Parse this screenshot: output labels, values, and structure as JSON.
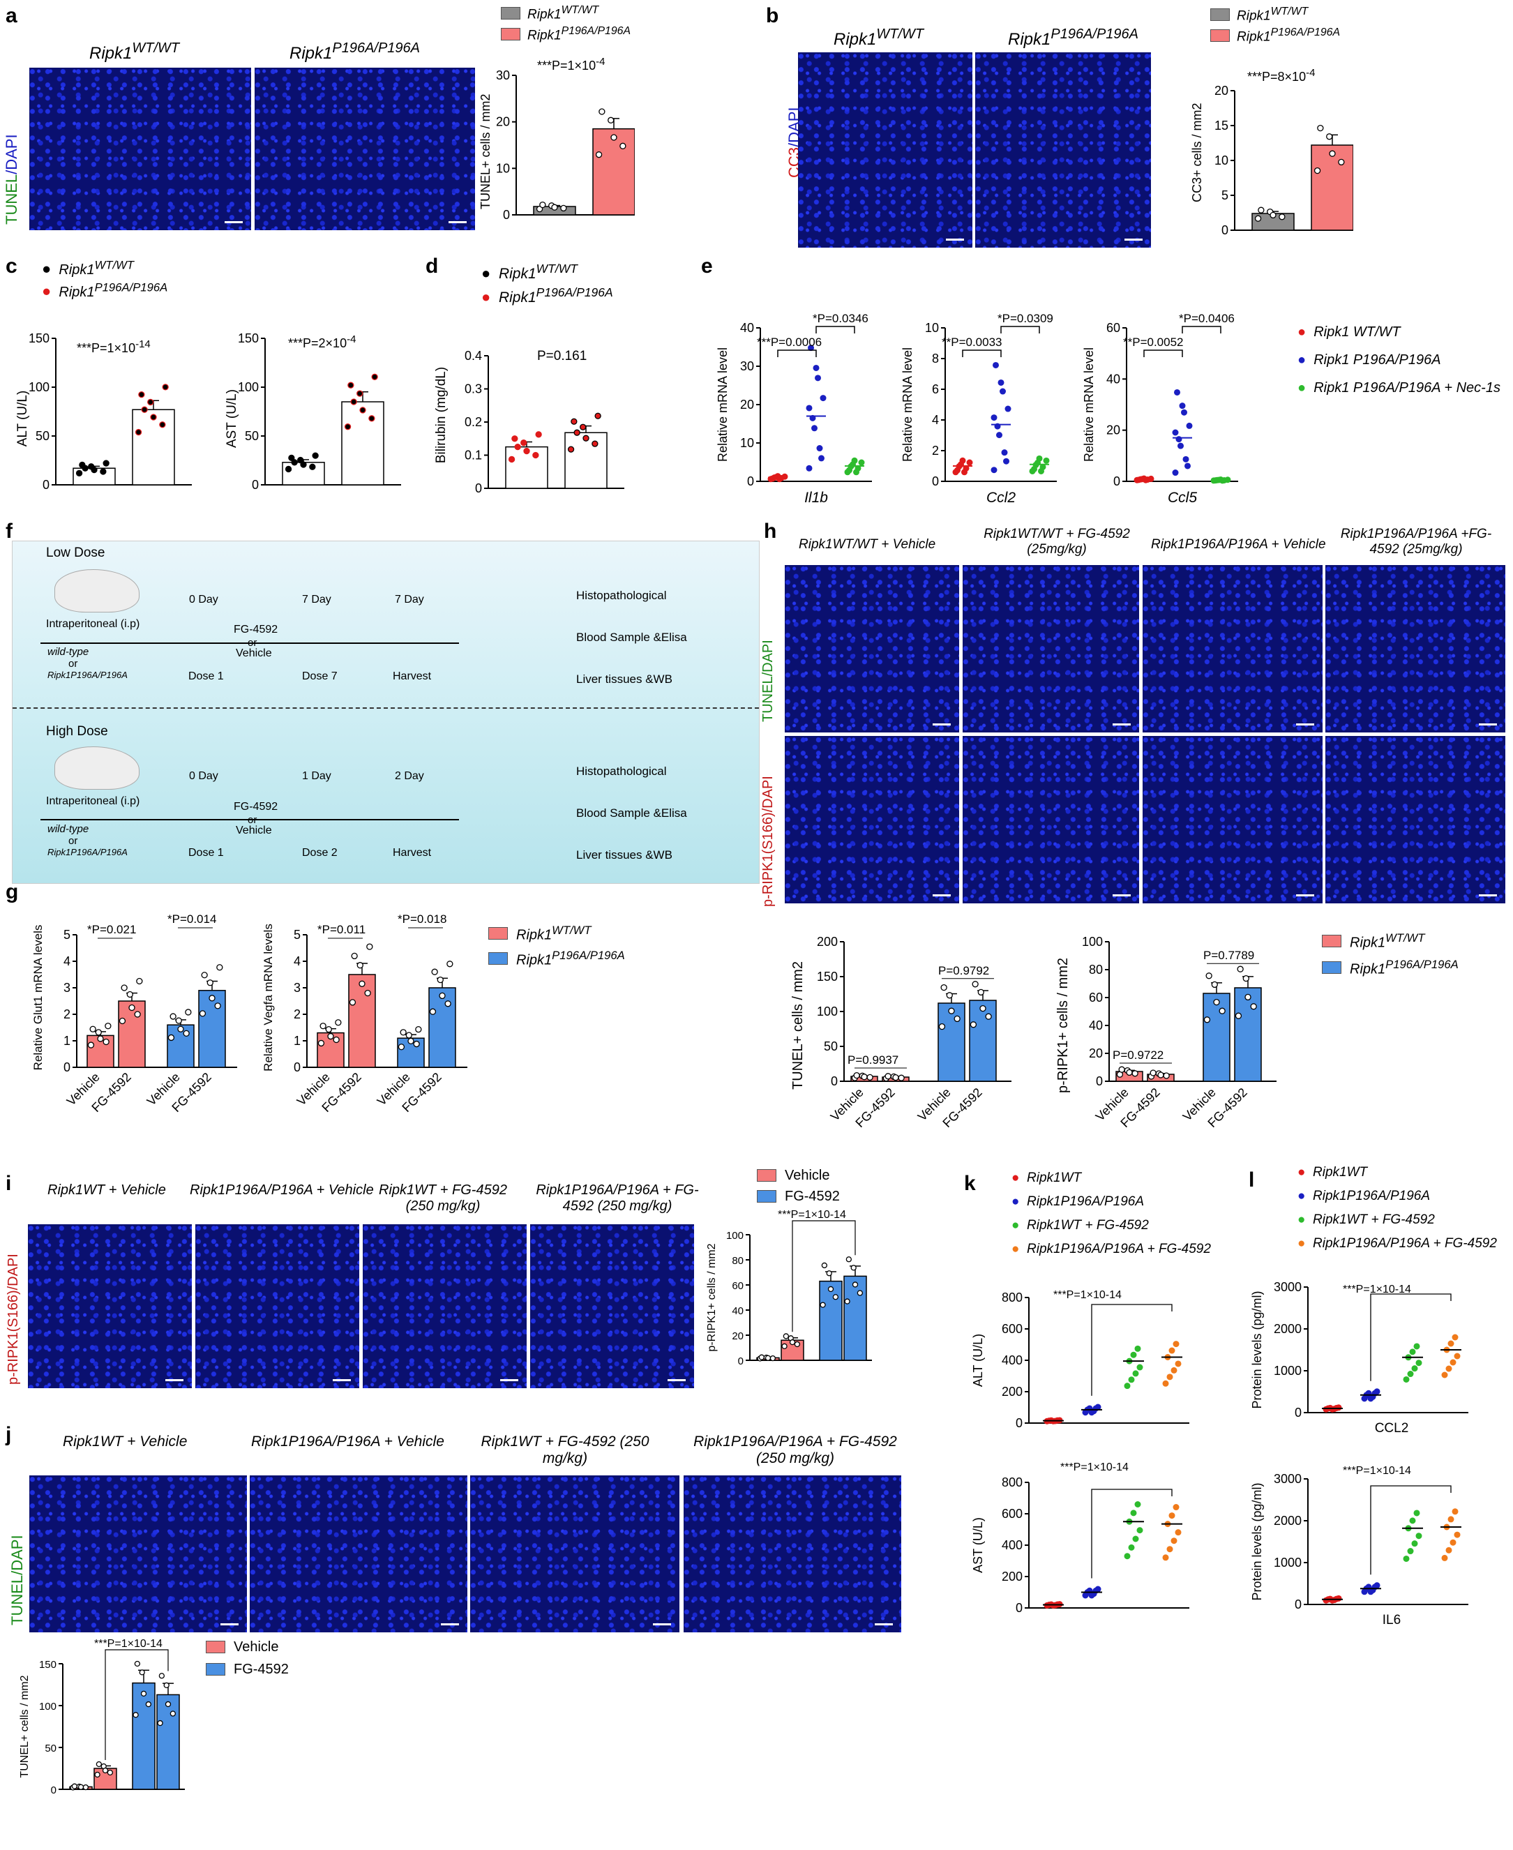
{
  "panels": {
    "a": {
      "label": "a",
      "col1": "Ripk1",
      "col1_sup": "WT/WT",
      "col2": "Ripk1",
      "col2_sup": "P196A/P196A",
      "stain_green": "TUNEL",
      "stain_blue": "/DAPI",
      "legend": [
        {
          "name": "Ripk1",
          "sup": "WT/WT",
          "color": "#8c8c8c"
        },
        {
          "name": "Ripk1",
          "sup": "P196A/P196A",
          "color": "#f47a7a"
        }
      ],
      "pval": "***P=1×10",
      "pval_exp": "-4",
      "ylabel": "TUNEL+ cells / mm2"
    },
    "b": {
      "label": "b",
      "col1": "Ripk1",
      "col1_sup": "WT/WT",
      "col2": "Ripk1",
      "col2_sup": "P196A/P196A",
      "stain_red": "CC3",
      "stain_blue": "/DAPI",
      "pval": "***P=8×10",
      "pval_exp": "-4",
      "ylabel": "CC3+ cells / mm2"
    },
    "c": {
      "label": "c",
      "legend1": "Ripk1",
      "legend1_sup": "WT/WT",
      "legend2": "Ripk1",
      "legend2_sup": "P196A/P196A",
      "alt_p": "***P=1×10",
      "alt_p_exp": "-14",
      "ast_p": "***P=2×10",
      "ast_p_exp": "-4"
    },
    "d": {
      "label": "d",
      "pval": "P=0.161"
    },
    "e": {
      "label": "e",
      "genes": [
        "Il1b",
        "Ccl2",
        "Ccl5"
      ],
      "legend": [
        "Ripk1 WT/WT",
        "Ripk1 P196A/P196A",
        "Ripk1 P196A/P196A + Nec-1s"
      ],
      "p_il1b": [
        "***P=0.0006",
        "*P=0.0346"
      ],
      "p_ccl2": [
        "**P=0.0033",
        "*P=0.0309"
      ],
      "p_ccl5": [
        "**P=0.0052",
        "*P=0.0406"
      ],
      "ylabel": "Relative mRNA level"
    },
    "f": {
      "label": "f",
      "low": "Low Dose",
      "high": "High Dose",
      "route": "Intraperitoneal (i.p)",
      "strain1": "wild-type",
      "or": "or",
      "strain2": "Ripk1P196A/P196A",
      "drug": "FG-4592",
      "or2": "or",
      "veh": "Vehicle",
      "low_days": [
        "0 Day",
        "7 Day",
        "7 Day"
      ],
      "low_doses": [
        "Dose 1",
        "Dose 7",
        "Harvest"
      ],
      "high_days": [
        "0 Day",
        "1 Day",
        "2 Day"
      ],
      "high_doses": [
        "Dose 1",
        "Dose 2",
        "Harvest"
      ],
      "outputs": [
        "Histopathological",
        "Blood Sample &Elisa",
        "Liver tissues &WB"
      ],
      "outputs2": [
        "Histopathological",
        "Blood Sample &Elisa",
        "Liver  tissues &WB"
      ]
    },
    "g": {
      "label": "g",
      "p1": [
        "*P=0.021",
        "*P=0.014"
      ],
      "p2": [
        "*P=0.011",
        "*P=0.018"
      ],
      "ylab1": "Relative Glut1 mRNA levels",
      "ylab2": "Relative Vegfa mRNA levels",
      "xticks": [
        "Vehicle",
        "FG-4592",
        "Vehicle",
        "FG-4592"
      ]
    },
    "h": {
      "label": "h",
      "cols": [
        "Ripk1WT/WT + Vehicle",
        "Ripk1WT/WT + FG-4592 (25mg/kg)",
        "Ripk1P196A/P196A + Vehicle",
        "Ripk1P196A/P196A +FG-4592 (25mg/kg)"
      ],
      "row1": "TUNEL/DAPI",
      "row2": "p-RIPK1(S166)/DAPI",
      "p_tunel": [
        "P=0.9937",
        "P=0.9792"
      ],
      "p_prip": [
        "P=0.9722",
        "P=0.7789"
      ]
    },
    "i": {
      "label": "i",
      "cols": [
        "Ripk1WT + Vehicle",
        "Ripk1P196A/P196A + Vehicle",
        "Ripk1WT + FG-4592 (250 mg/kg)",
        "Ripk1P196A/P196A + FG-4592 (250 mg/kg)"
      ],
      "row": "p-RIPK1(S166)/DAPI",
      "pval": "***P=1×10-14",
      "legend": [
        "Vehicle",
        "FG-4592"
      ]
    },
    "j": {
      "label": "j",
      "cols": [
        "Ripk1WT + Vehicle",
        "Ripk1P196A/P196A + Vehicle",
        "Ripk1WT + FG-4592 (250 mg/kg)",
        "Ripk1P196A/P196A + FG-4592 (250 mg/kg)"
      ],
      "row": "TUNEL/DAPI",
      "pval": "***P=1×10-14",
      "legend": [
        "Vehicle",
        "FG-4592"
      ]
    },
    "k": {
      "label": "k",
      "legend": [
        "Ripk1WT",
        "Ripk1P196A/P196A",
        "Ripk1WT + FG-4592",
        "Ripk1P196A/P196A + FG-4592"
      ],
      "p_alt": "***P=1×10-14",
      "p_ast": "***P=1×10-14"
    },
    "l": {
      "label": "l",
      "legend": [
        "Ripk1WT",
        "Ripk1P196A/P196A",
        "Ripk1WT + FG-4592",
        "Ripk1P196A/P196A + FG-4592"
      ],
      "p_ccl2": "***P=1×10-14",
      "p_il6": "***P=1×10-14",
      "xlab1": "CCL2",
      "xlab2": "IL6"
    }
  },
  "chart_data": [
    {
      "id": "a-bar",
      "type": "bar",
      "categories": [
        "Ripk1 WT/WT",
        "Ripk1 P196A/P196A"
      ],
      "values": [
        1.8,
        18.5
      ],
      "ylim": [
        0,
        30
      ],
      "ylabel": "TUNEL+ cells / mm2",
      "colors": [
        "#8c8c8c",
        "#f47a7a"
      ]
    },
    {
      "id": "b-bar",
      "type": "bar",
      "categories": [
        "Ripk1 WT/WT",
        "Ripk1 P196A/P196A"
      ],
      "values": [
        2.4,
        12.2
      ],
      "ylim": [
        0,
        20
      ],
      "ylabel": "CC3+ cells / mm2",
      "colors": [
        "#8c8c8c",
        "#f47a7a"
      ]
    },
    {
      "id": "c-alt",
      "type": "bar",
      "values": [
        17,
        77
      ],
      "ylim": [
        0,
        150
      ],
      "ylabel": "ALT (U/L)"
    },
    {
      "id": "c-ast",
      "type": "bar",
      "values": [
        23,
        85
      ],
      "ylim": [
        0,
        150
      ],
      "ylabel": "AST (U/L)"
    },
    {
      "id": "d-bili",
      "type": "bar",
      "values": [
        0.125,
        0.168
      ],
      "ylim": [
        0,
        0.4
      ],
      "ylabel": "Bilirubin (mg/dL)"
    },
    {
      "id": "e-il1b",
      "type": "scatter",
      "values": [
        1,
        17,
        4
      ],
      "ylim": [
        0,
        40
      ],
      "xlabel": "Il1b"
    },
    {
      "id": "e-ccl2",
      "type": "scatter",
      "values": [
        1,
        3.7,
        1.1
      ],
      "ylim": [
        0,
        10
      ],
      "xlabel": "Ccl2"
    },
    {
      "id": "e-ccl5",
      "type": "scatter",
      "values": [
        0.8,
        17,
        0.5
      ],
      "ylim": [
        0,
        60
      ],
      "xlabel": "Ccl5"
    },
    {
      "id": "g-glut1",
      "type": "bar",
      "values": [
        1.2,
        2.5,
        1.6,
        2.9
      ],
      "ylim": [
        0,
        5
      ]
    },
    {
      "id": "g-vegfa",
      "type": "bar",
      "values": [
        1.3,
        3.5,
        1.1,
        3.0
      ],
      "ylim": [
        0,
        5
      ]
    },
    {
      "id": "h-tunel",
      "type": "bar",
      "values": [
        7,
        6,
        112,
        116
      ],
      "ylim": [
        0,
        200
      ]
    },
    {
      "id": "h-prip",
      "type": "bar",
      "values": [
        7,
        5,
        63,
        67
      ],
      "ylim": [
        0,
        100
      ]
    },
    {
      "id": "i-bar",
      "type": "bar",
      "values": [
        2,
        16,
        63,
        67
      ],
      "ylim": [
        0,
        100
      ]
    },
    {
      "id": "j-bar",
      "type": "bar",
      "values": [
        3,
        25,
        127,
        113
      ],
      "ylim": [
        0,
        150
      ]
    },
    {
      "id": "k-alt",
      "type": "scatter",
      "values": [
        15,
        85,
        395,
        420
      ],
      "ylim": [
        0,
        800
      ]
    },
    {
      "id": "k-ast",
      "type": "scatter",
      "values": [
        20,
        100,
        550,
        535
      ],
      "ylim": [
        0,
        800
      ]
    },
    {
      "id": "l-ccl2",
      "type": "scatter",
      "values": [
        100,
        420,
        1320,
        1500
      ],
      "ylim": [
        0,
        3000
      ]
    },
    {
      "id": "l-il6",
      "type": "scatter",
      "values": [
        120,
        380,
        1820,
        1850
      ],
      "ylim": [
        0,
        3000
      ]
    }
  ],
  "colors": {
    "wt": "#e01b1b",
    "mut": "#1a1fc2",
    "nec": "#2dbb2d",
    "fg_wt": "#2dbb2d",
    "fg_mut": "#f07a1a",
    "veh_bar": "#f47a7a",
    "fg_bar": "#4a90e2"
  }
}
